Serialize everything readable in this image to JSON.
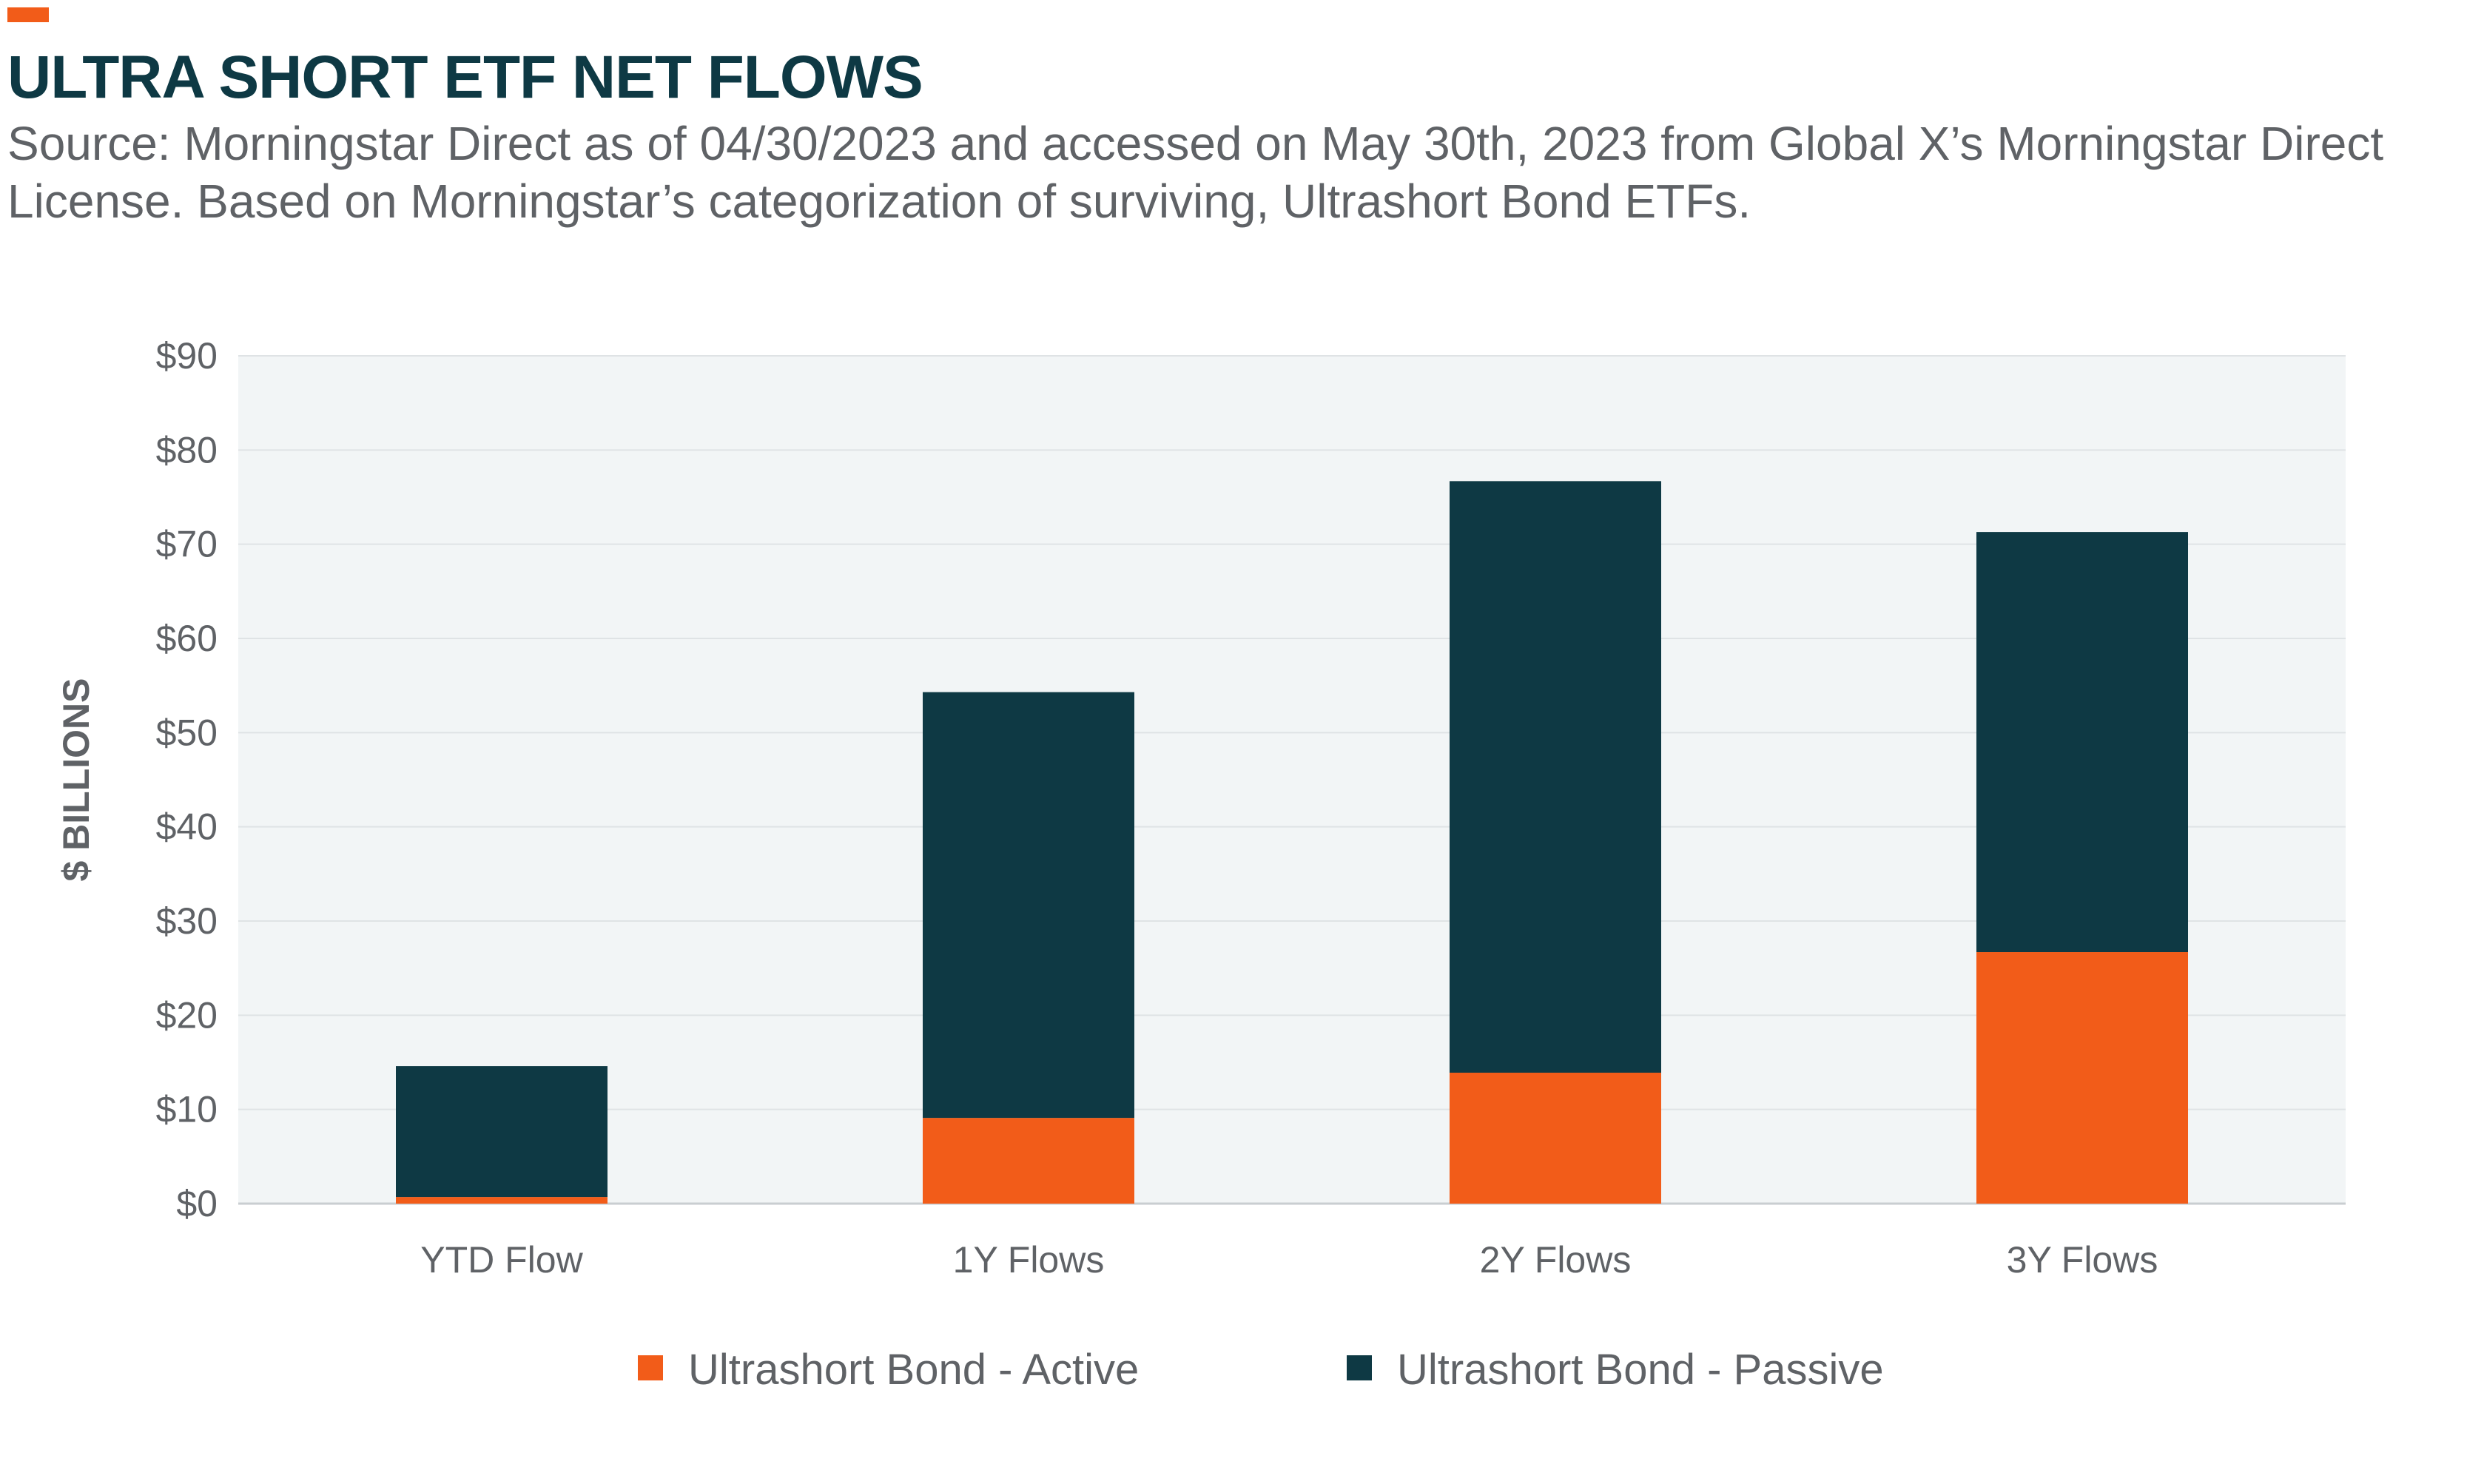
{
  "header": {
    "title": "ULTRA SHORT ETF NET FLOWS",
    "source": "Source: Morningstar Direct as of 04/30/2023 and accessed on May 30th, 2023 from Global X’s Morningstar Direct License. Based on Morningstar’s categorization of surviving, Ultrashort Bond ETFs."
  },
  "colors": {
    "accent": "#f25c19",
    "active": "#f25c19",
    "passive": "#0e3944",
    "plot_bg": "#f2f5f6",
    "grid": "#dfe3e5",
    "text": "#5f6266",
    "title": "#0e3944"
  },
  "chart_data": {
    "type": "bar",
    "stacked": true,
    "categories": [
      "YTD Flow",
      "1Y Flows",
      "2Y Flows",
      "3Y Flows"
    ],
    "series": [
      {
        "name": "Ultrashort Bond - Active",
        "color": "#f25c19",
        "values": [
          0.7,
          9.1,
          13.9,
          26.7
        ]
      },
      {
        "name": "Ultrashort Bond - Passive",
        "color": "#0e3944",
        "values": [
          13.9,
          45.2,
          62.8,
          44.6
        ]
      }
    ],
    "ylabel": "$ BILLIONS",
    "xlabel": "",
    "ylim": [
      0,
      90
    ],
    "yticks": [
      0,
      10,
      20,
      30,
      40,
      50,
      60,
      70,
      80,
      90
    ],
    "ytick_labels": [
      "$0",
      "$10",
      "$20",
      "$30",
      "$40",
      "$50",
      "$60",
      "$70",
      "$80",
      "$90"
    ],
    "grid": true,
    "legend_position": "bottom-center"
  }
}
